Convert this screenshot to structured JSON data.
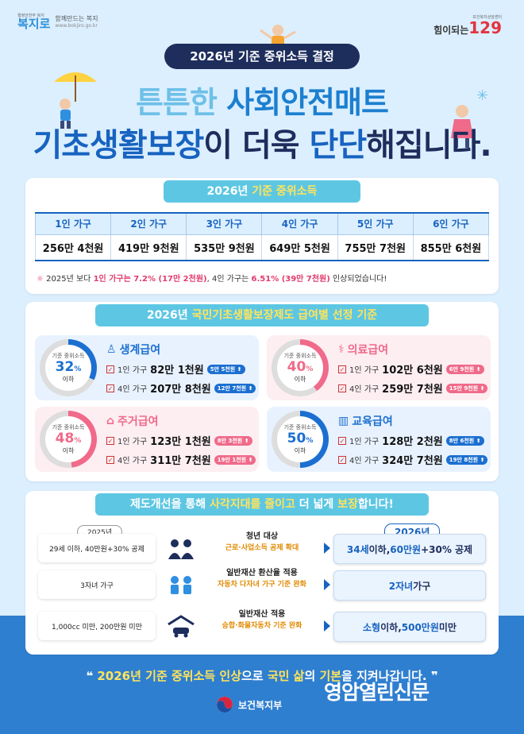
{
  "header": {
    "logo_small": "행정안전부 복지",
    "logo_mark": "복지로",
    "logo_tagline": "함께만드는 복지",
    "logo_url": "www.bokjiro.go.kr",
    "brand_small": "보건복지상담센터",
    "brand_text": "힘이되는",
    "brand_number": "129"
  },
  "title_pill": "2026년 기준 중위소득 결정",
  "headline": {
    "line1_pre": "튼튼한 ",
    "line1_em": "사회안전매트",
    "line2_em1": "기초생활보장",
    "line2_mid": "이 더욱 ",
    "line2_em2": "단단",
    "line2_post": "해집니다."
  },
  "income_section": {
    "title_pre": "2026년 ",
    "title_em": "기준 중위소득",
    "headers": [
      "1인 가구",
      "2인 가구",
      "3인 가구",
      "4인 가구",
      "5인 가구",
      "6인 가구"
    ],
    "values": [
      "256만 4천원",
      "419만 9천원",
      "535만 9천원",
      "649만 5천원",
      "755만 7천원",
      "855만 6천원"
    ],
    "note_pre": "2025년 보다 ",
    "note_r1": "1인 가구는 7.2% (17만 2천원)",
    "note_mid": ", 4인 가구는 ",
    "note_r2": "6.51% (39만 7천원)",
    "note_post": " 인상되었습니다!"
  },
  "benefit_section": {
    "title_pre": "2026년 ",
    "title_em": "국민기초생활보장제도 급여별 선정 기준",
    "label_top": "기준 중위소득",
    "label_bottom": "이하",
    "row1": "1인 가구",
    "row4": "4인 가구",
    "cards": [
      {
        "name": "생계급여",
        "percent": "32",
        "v1": "82만 1천원",
        "b1": "5만 5천원",
        "v4": "207만 8천원",
        "b4": "12만 7천원",
        "color": "#1c6fd0"
      },
      {
        "name": "의료급여",
        "percent": "40",
        "v1": "102만 6천원",
        "b1": "6만 9천원",
        "v4": "259만 7천원",
        "b4": "15만 9천원",
        "color": "#f06a8a"
      },
      {
        "name": "주거급여",
        "percent": "48",
        "v1": "123만 1천원",
        "b1": "8만 3천원",
        "v4": "311만 7천원",
        "b4": "19만 1천원",
        "color": "#f06a8a"
      },
      {
        "name": "교육급여",
        "percent": "50",
        "v1": "128만 2천원",
        "b1": "8만 6천원",
        "v4": "324만 7천원",
        "b4": "19만 8천원",
        "color": "#1c6fd0"
      }
    ]
  },
  "improve_section": {
    "title_pre": "제도개선을 통해 ",
    "title_em1": "사각지대를 줄이고",
    "title_mid": " 더 넓게 ",
    "title_em2": "보장",
    "title_post": "합니다!",
    "year_old": "2025년",
    "year_new": "2026년",
    "rows": [
      {
        "old": "29세 이하, 40만원+30% 공제",
        "mid_t": "청년 대상",
        "mid_o": "근로·사업소득 공제 확대",
        "new_b": "34세",
        "new_t1": " 이하, ",
        "new_b2": "60만원",
        "new_t2": "+30% 공제",
        "icon": "people-icon"
      },
      {
        "old": "3자녀 가구",
        "mid_t": "일반재산 환산율 적용",
        "mid_o": "자동차 다자녀 가구 기준 완화",
        "new_b": "2자녀",
        "new_t1": " 가구",
        "new_b2": "",
        "new_t2": "",
        "icon": "children-icon"
      },
      {
        "old": "1,000cc 미만, 200만원 미만",
        "mid_t": "일반재산 적용",
        "mid_o": "승합·화물자동차 기준 완화",
        "new_b": "소형",
        "new_t1": " 이하, ",
        "new_b2": "500만원",
        "new_t2": " 미만",
        "icon": "car-garage-icon"
      }
    ]
  },
  "slogan": {
    "q1": "❝ ",
    "y1": "2026년 기준 중위소득 인상",
    "w1": "으로 ",
    "y2": "국민 삶",
    "w2": "의 ",
    "y3": "기본",
    "w3": "을 지켜나갑니다.",
    "q2": " ❞"
  },
  "ministry": "보건복지부",
  "watermark": "영암열린신문"
}
